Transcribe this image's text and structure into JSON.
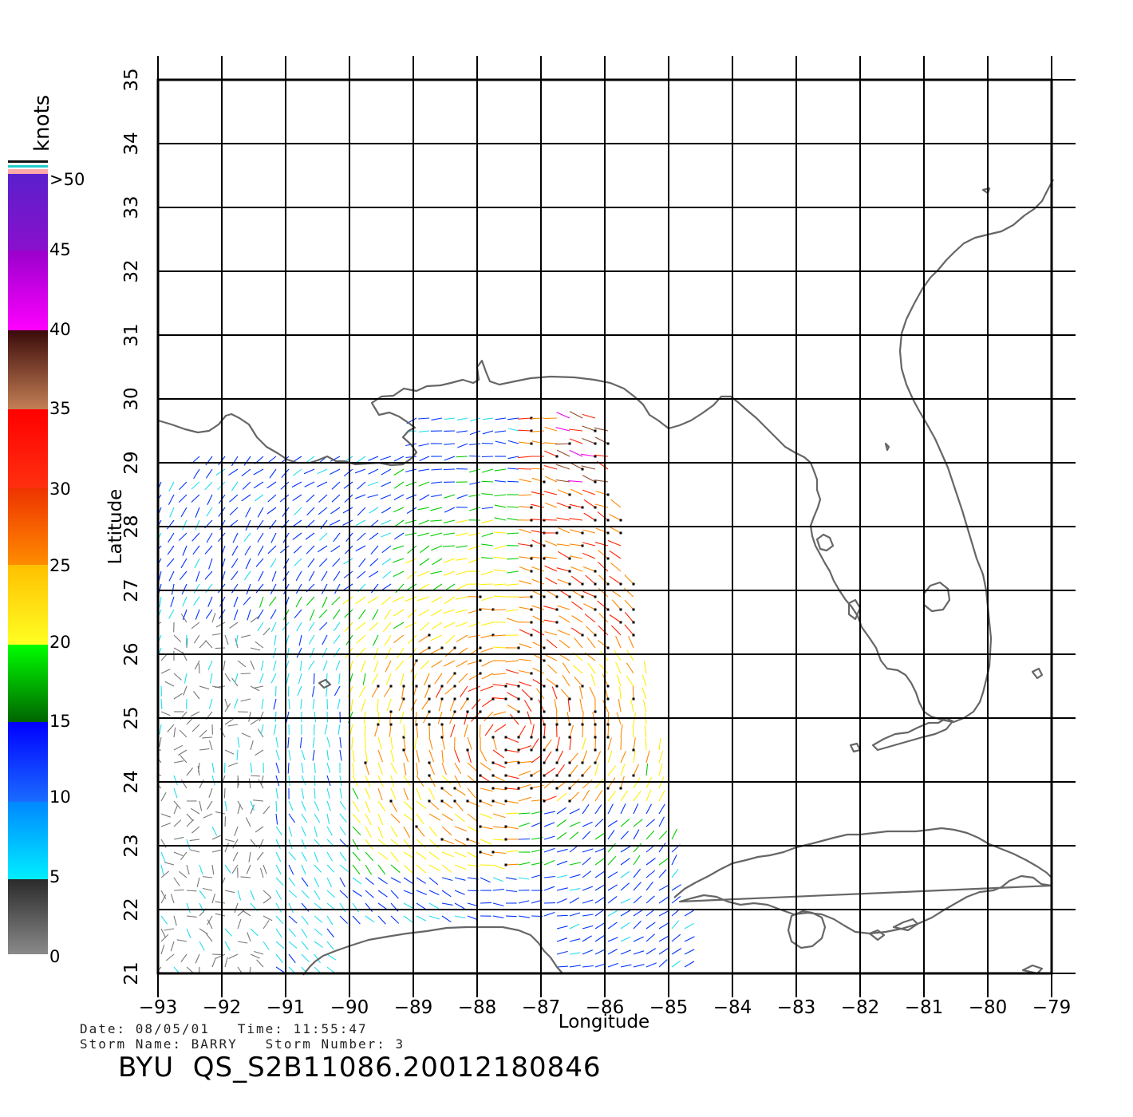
{
  "colorbar": {
    "unit_label": "knots",
    "labels": [
      ">50",
      "45",
      "40",
      "35",
      "30",
      "25",
      "20",
      "15",
      "10",
      "5",
      "0"
    ]
  },
  "axes": {
    "xlabel": "Longitude",
    "ylabel": "Latitude",
    "xticks": [
      "−93",
      "−92",
      "−91",
      "−90",
      "−89",
      "−88",
      "−87",
      "−86",
      "−85",
      "−84",
      "−83",
      "−82",
      "−81",
      "−80",
      "−79"
    ],
    "yticks": [
      "21",
      "22",
      "23",
      "24",
      "25",
      "26",
      "27",
      "28",
      "29",
      "30",
      "31",
      "32",
      "33",
      "34",
      "35"
    ],
    "lon_range": [
      -93,
      -79
    ],
    "lat_range": [
      21,
      35
    ],
    "grid": true
  },
  "footer": {
    "line1": "Date: 08/05/01   Time: 11:55:47",
    "line2": "Storm Name: BARRY   Storm Number: 3",
    "title": "BYU  QS_S2B11086.20012180846"
  },
  "colors": {
    "coast": "#666666",
    "grid": "#000000",
    "speed_bands": [
      "#777777",
      "#22ddee",
      "#0033ff",
      "#00cc00",
      "#ffee00",
      "#ff8800",
      "#ff2200",
      "#8b4a2b",
      "#ee00ee",
      "#6611cc"
    ]
  }
}
